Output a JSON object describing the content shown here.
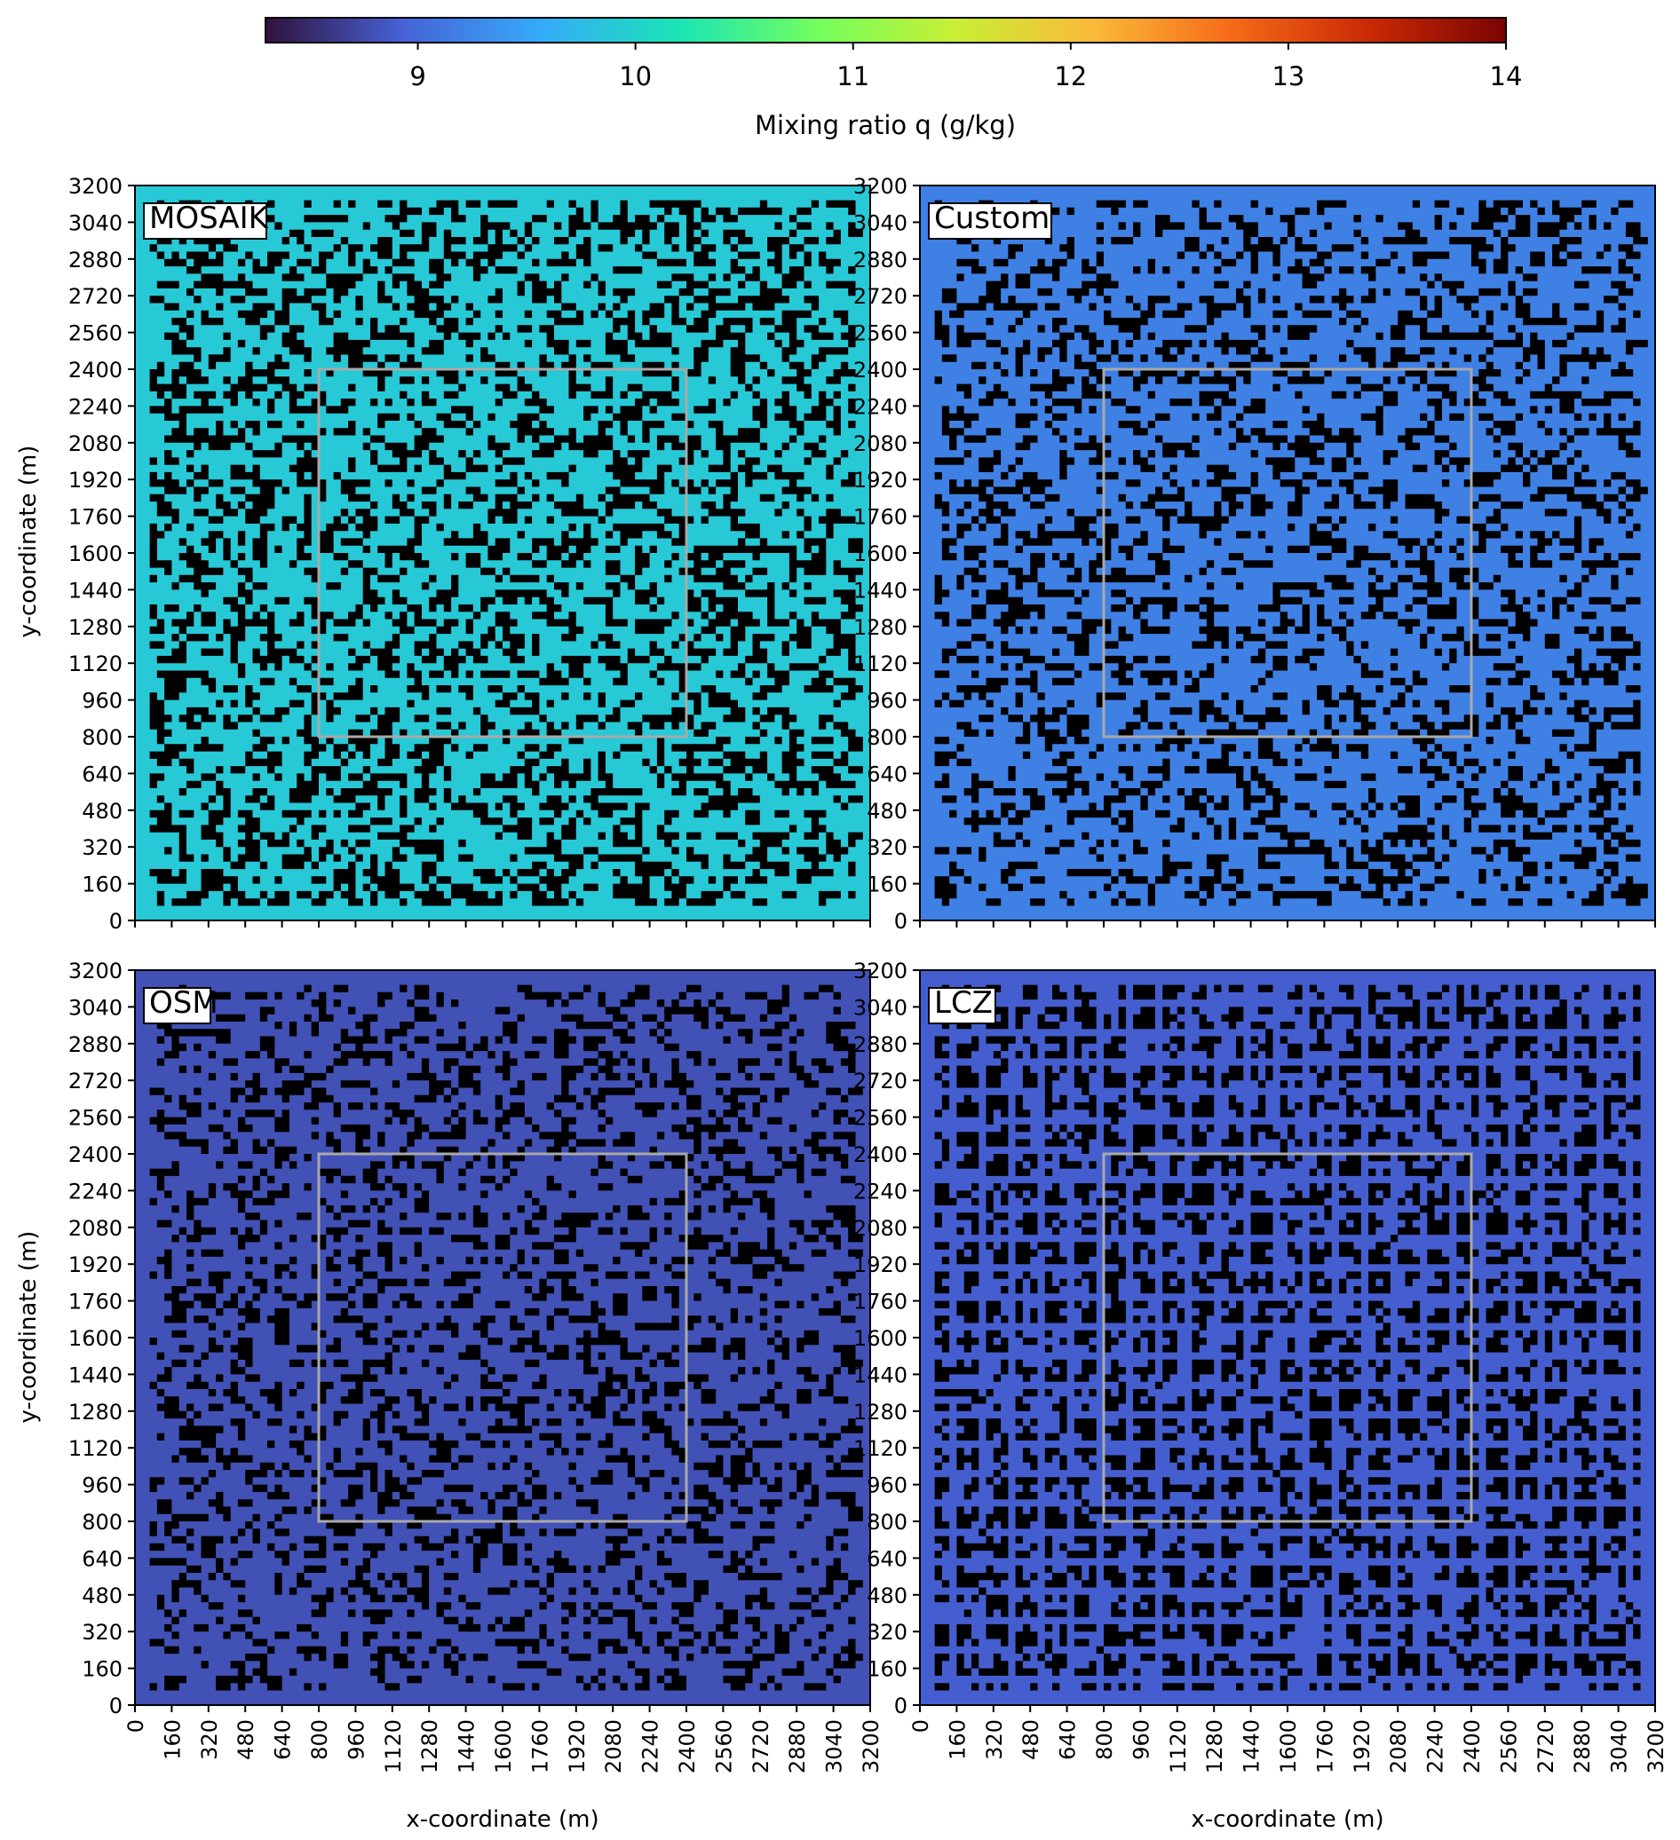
{
  "colorbar": {
    "label": "Mixing ratio q (g/kg)",
    "vmin": 8.3,
    "vmax": 14,
    "ticks": [
      9,
      10,
      11,
      12,
      13,
      14
    ],
    "colormap": [
      "#30123b",
      "#4662d7",
      "#36aaf9",
      "#1ae4b6",
      "#72fe5e",
      "#c8ef34",
      "#faba39",
      "#f66b19",
      "#ca2a04",
      "#7a0403"
    ]
  },
  "chart_data": [
    {
      "type": "heatmap",
      "label": "MOSAIK",
      "xlim": [
        0,
        3200
      ],
      "ylim": [
        0,
        3200
      ],
      "xticks": [
        0,
        160,
        320,
        480,
        640,
        800,
        960,
        1120,
        1280,
        1440,
        1600,
        1760,
        1920,
        2080,
        2240,
        2400,
        2560,
        2720,
        2880,
        3040,
        3200
      ],
      "yticks": [
        0,
        160,
        320,
        480,
        640,
        800,
        960,
        1120,
        1280,
        1440,
        1600,
        1760,
        1920,
        2080,
        2240,
        2400,
        2560,
        2720,
        2880,
        3040,
        3200
      ],
      "xlabel": "",
      "ylabel": "y-coordinate (m)",
      "background_q": 9.9,
      "building_color": "#000000",
      "inner_box": [
        800,
        800,
        2400,
        2400
      ]
    },
    {
      "type": "heatmap",
      "label": "Custom",
      "xlim": [
        0,
        3200
      ],
      "ylim": [
        0,
        3200
      ],
      "xticks": [
        0,
        160,
        320,
        480,
        640,
        800,
        960,
        1120,
        1280,
        1440,
        1600,
        1760,
        1920,
        2080,
        2240,
        2400,
        2560,
        2720,
        2880,
        3040,
        3200
      ],
      "yticks": [
        0,
        160,
        320,
        480,
        640,
        800,
        960,
        1120,
        1280,
        1440,
        1600,
        1760,
        1920,
        2080,
        2240,
        2400,
        2560,
        2720,
        2880,
        3040,
        3200
      ],
      "xlabel": "",
      "ylabel": "",
      "background_q": 9.2,
      "building_color": "#000000",
      "inner_box": [
        800,
        800,
        2400,
        2400
      ]
    },
    {
      "type": "heatmap",
      "label": "OSM",
      "xlim": [
        0,
        3200
      ],
      "ylim": [
        0,
        3200
      ],
      "xticks": [
        0,
        160,
        320,
        480,
        640,
        800,
        960,
        1120,
        1280,
        1440,
        1600,
        1760,
        1920,
        2080,
        2240,
        2400,
        2560,
        2720,
        2880,
        3040,
        3200
      ],
      "yticks": [
        0,
        160,
        320,
        480,
        640,
        800,
        960,
        1120,
        1280,
        1440,
        1600,
        1760,
        1920,
        2080,
        2240,
        2400,
        2560,
        2720,
        2880,
        3040,
        3200
      ],
      "xlabel": "x-coordinate (m)",
      "ylabel": "y-coordinate (m)",
      "background_q": 8.8,
      "building_color": "#000000",
      "inner_box": [
        800,
        800,
        2400,
        2400
      ]
    },
    {
      "type": "heatmap",
      "label": "LCZ",
      "xlim": [
        0,
        3200
      ],
      "ylim": [
        0,
        3200
      ],
      "xticks": [
        0,
        160,
        320,
        480,
        640,
        800,
        960,
        1120,
        1280,
        1440,
        1600,
        1760,
        1920,
        2080,
        2240,
        2400,
        2560,
        2720,
        2880,
        3040,
        3200
      ],
      "yticks": [
        0,
        160,
        320,
        480,
        640,
        800,
        960,
        1120,
        1280,
        1440,
        1600,
        1760,
        1920,
        2080,
        2240,
        2400,
        2560,
        2720,
        2880,
        3040,
        3200
      ],
      "xlabel": "x-coordinate (m)",
      "ylabel": "",
      "background_q": 8.9,
      "building_color": "#000000",
      "inner_box": [
        800,
        800,
        2400,
        2400
      ]
    }
  ]
}
